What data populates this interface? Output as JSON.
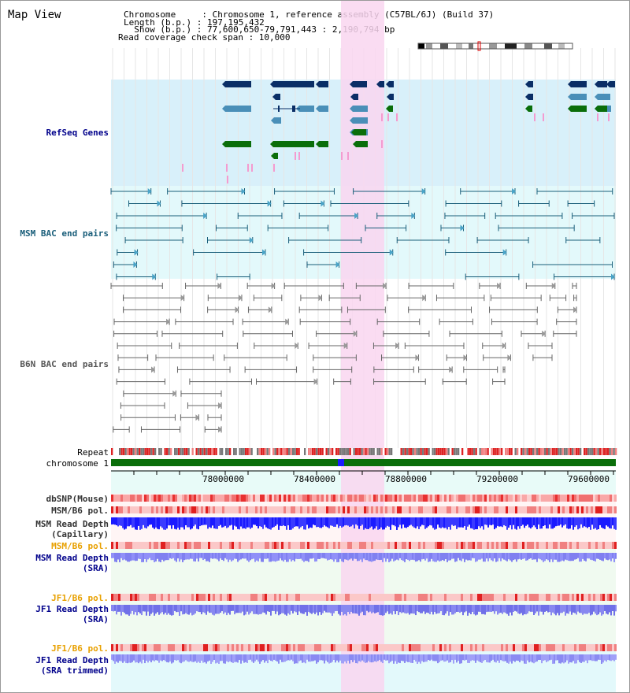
{
  "app": {
    "title": "Map View"
  },
  "header": {
    "chromosome_line": "Chromosome     : Chromosome 1, reference assembly (C57BL/6J) (Build 37)",
    "length_line": "Length (b.p.) : 197,195,432",
    "show_line": "  Show (b.p.) : 77,600,650-79,791,443 : 2,190,794 bp",
    "read_cov_line": "Read coverage check span : 10,000"
  },
  "tracks": {
    "refseq": "RefSeq Genes",
    "msm_bac": "MSM BAC end pairs",
    "b6n_bac": "B6N BAC end pairs",
    "repeat": "Repeat",
    "chromosome": "chromosome 1",
    "dbsnp": "dbSNP(Mouse)",
    "msm_b6_pol_1": "MSM/B6 pol.",
    "msm_read_depth_cap_1": "MSM Read Depth",
    "msm_read_depth_cap_2": "(Capillary)",
    "msm_b6_pol_2": "MSM/B6 pol.",
    "msm_read_depth_sra_1": "MSM Read Depth",
    "msm_read_depth_sra_2": "(SRA)",
    "jf1_b6_pol_1": "JF1/B6 pol.",
    "jf1_read_depth_sra_1": "JF1 Read Depth",
    "jf1_read_depth_sra_2": "(SRA)",
    "jf1_b6_pol_2": "JF1/B6 pol.",
    "jf1_read_depth_trim_1": "JF1 Read Depth",
    "jf1_read_depth_trim_2": "(SRA trimmed)"
  },
  "ruler": {
    "ticks": [
      "78000000",
      "78400000",
      "78800000",
      "79200000",
      "79600000"
    ]
  },
  "colors": {
    "refseq_bg": "#d8f0fa",
    "msm_bac_bg": "#e3f9fb",
    "highlight": "#f9d6f0",
    "navy": "#0a2e66",
    "steel": "#4a8fb8",
    "green": "#0a6e0a",
    "pink": "#f49bd0",
    "blue_label": "#00008b",
    "teal_label": "#1a5e7a",
    "orange_label": "#e8a000",
    "gray_label": "#333333"
  }
}
